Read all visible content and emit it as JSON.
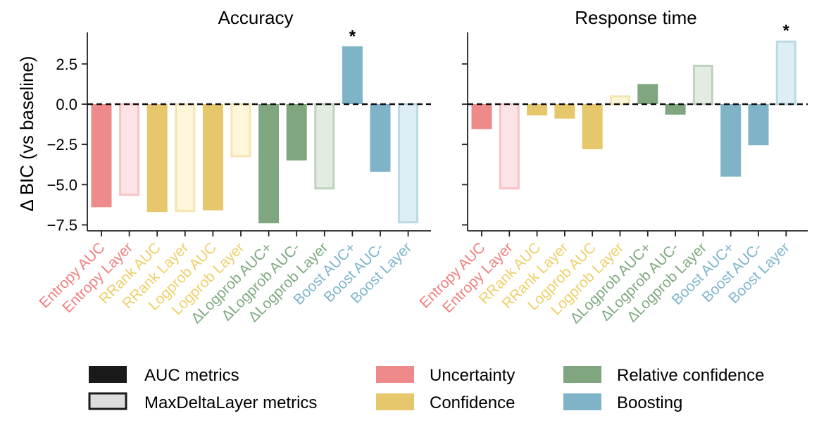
{
  "y_label": "Δ BIC (vs baseline)",
  "colors": {
    "uncertainty": "#ef8a8a",
    "confidence": "#e6c76b",
    "relative": "#7fa67f",
    "boosting": "#7fb3c8",
    "uncertainty_light": "#fde3e5",
    "confidence_light": "#fdf6d9",
    "relative_light": "#e2ece0",
    "boosting_light": "#deeef6",
    "uncertainty_text": "#ef7f7f",
    "confidence_text": "#edd06a",
    "relative_text": "#7faa7f",
    "boosting_text": "#7fb5cc"
  },
  "legend": {
    "auc_label": "AUC metrics",
    "layer_label": "MaxDeltaLayer metrics",
    "uncertainty": "Uncertainty",
    "confidence": "Confidence",
    "relative": "Relative confidence",
    "boosting": "Boosting"
  },
  "chart_data": [
    {
      "type": "bar",
      "title": "Accuracy",
      "ylabel": "Δ BIC (vs baseline)",
      "ylim": [
        -8,
        4.5
      ],
      "yticks": [
        "2.5",
        "0.0",
        "−2.5",
        "−5.0",
        "−7.5"
      ],
      "categories": [
        "Entropy AUC",
        "Entropy Layer",
        "RRank AUC",
        "RRank Layer",
        "Logprob AUC",
        "Logprob Layer",
        "ΔLogprob AUC+",
        "ΔLogprob AUC-",
        "ΔLogprob Layer",
        "Boost AUC+",
        "Boost AUC-",
        "Boost Layer"
      ],
      "groups": [
        "uncertainty",
        "uncertainty",
        "confidence",
        "confidence",
        "confidence",
        "confidence",
        "relative",
        "relative",
        "relative",
        "boosting",
        "boosting",
        "boosting"
      ],
      "metric": [
        "auc",
        "layer",
        "auc",
        "layer",
        "auc",
        "layer",
        "auc",
        "auc",
        "layer",
        "auc",
        "auc",
        "layer"
      ],
      "values": [
        -6.4,
        -5.7,
        -6.7,
        -6.7,
        -6.6,
        -3.3,
        -7.4,
        -3.5,
        -5.3,
        3.6,
        -4.2,
        -7.4
      ],
      "annotations": [
        {
          "index": 9,
          "text": "*"
        }
      ]
    },
    {
      "type": "bar",
      "title": "Response time",
      "ylim": [
        -8,
        4.5
      ],
      "categories": [
        "Entropy AUC",
        "Entropy Layer",
        "RRank AUC",
        "RRank Layer",
        "Logprob AUC",
        "Logprob Layer",
        "ΔLogprob AUC+",
        "ΔLogprob AUC-",
        "ΔLogprob Layer",
        "Boost AUC+",
        "Boost AUC-",
        "Boost Layer"
      ],
      "groups": [
        "uncertainty",
        "uncertainty",
        "confidence",
        "confidence",
        "confidence",
        "confidence",
        "relative",
        "relative",
        "relative",
        "boosting",
        "boosting",
        "boosting"
      ],
      "metric": [
        "auc",
        "layer",
        "auc",
        "auc",
        "auc",
        "layer",
        "auc",
        "auc",
        "layer",
        "auc",
        "auc",
        "layer"
      ],
      "values": [
        -1.55,
        -5.3,
        -0.7,
        -0.9,
        -2.8,
        0.55,
        1.25,
        -0.65,
        2.45,
        -4.5,
        -2.55,
        3.95
      ],
      "annotations": [
        {
          "index": 11,
          "text": "*"
        }
      ]
    }
  ]
}
